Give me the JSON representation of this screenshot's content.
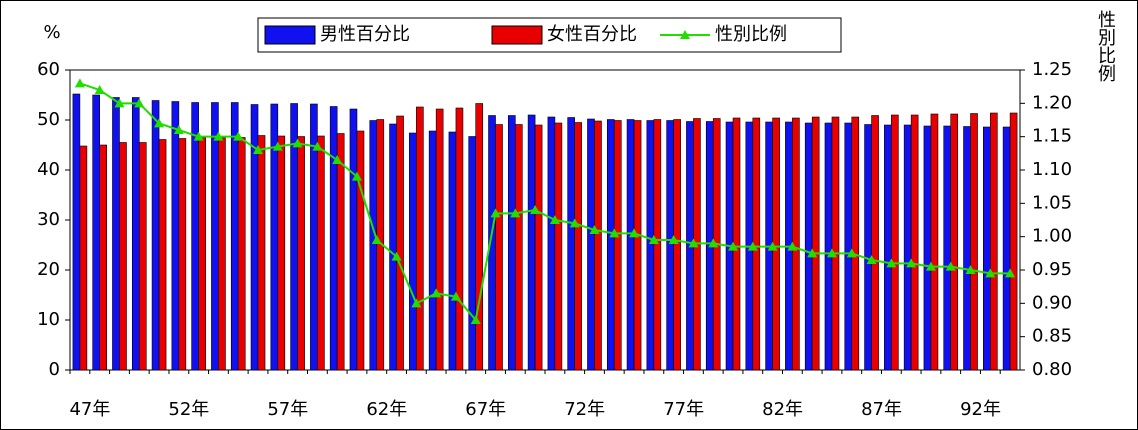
{
  "chart_data": {
    "type": "bar-line",
    "y_label": "%",
    "y2_label": "性別比例",
    "categories": [
      "47年",
      null,
      null,
      null,
      null,
      "52年",
      null,
      null,
      null,
      null,
      "57年",
      null,
      null,
      null,
      null,
      "62年",
      null,
      null,
      null,
      null,
      "67年",
      null,
      null,
      null,
      null,
      "72年",
      null,
      null,
      null,
      null,
      "77年",
      null,
      null,
      null,
      null,
      "82年",
      null,
      null,
      null,
      null,
      "87年",
      null,
      null,
      null,
      null,
      "92年",
      null,
      null
    ],
    "series": [
      {
        "name": "男性百分比",
        "color": "#1010f0",
        "kind": "bar",
        "values": [
          55.2,
          55.0,
          54.5,
          54.5,
          53.9,
          53.7,
          53.5,
          53.5,
          53.5,
          53.1,
          53.2,
          53.3,
          53.2,
          52.7,
          52.2,
          49.9,
          49.2,
          47.4,
          47.8,
          47.6,
          46.7,
          50.9,
          50.9,
          51.0,
          50.6,
          50.5,
          50.2,
          50.1,
          50.1,
          49.9,
          49.9,
          49.7,
          49.7,
          49.6,
          49.6,
          49.6,
          49.6,
          49.4,
          49.4,
          49.4,
          49.1,
          49.0,
          49.0,
          48.8,
          48.8,
          48.7,
          48.6,
          48.6
        ]
      },
      {
        "name": "女性百分比",
        "color": "#e80000",
        "kind": "bar",
        "values": [
          44.8,
          45.0,
          45.5,
          45.5,
          46.1,
          46.3,
          46.5,
          46.5,
          46.5,
          46.9,
          46.8,
          46.7,
          46.8,
          47.3,
          47.8,
          50.1,
          50.8,
          52.6,
          52.2,
          52.4,
          53.3,
          49.1,
          49.1,
          49.0,
          49.4,
          49.5,
          49.8,
          49.9,
          49.9,
          50.1,
          50.1,
          50.3,
          50.3,
          50.4,
          50.4,
          50.4,
          50.4,
          50.6,
          50.6,
          50.6,
          50.9,
          51.0,
          51.0,
          51.2,
          51.2,
          51.3,
          51.4,
          51.4
        ]
      },
      {
        "name": "性別比例",
        "color": "#22dd00",
        "kind": "line",
        "axis": "y2",
        "values": [
          1.23,
          1.22,
          1.2,
          1.2,
          1.17,
          1.16,
          1.15,
          1.15,
          1.15,
          1.13,
          1.135,
          1.14,
          1.135,
          1.115,
          1.09,
          0.995,
          0.97,
          0.9,
          0.915,
          0.91,
          0.875,
          1.035,
          1.035,
          1.04,
          1.025,
          1.02,
          1.01,
          1.005,
          1.005,
          0.995,
          0.995,
          0.99,
          0.99,
          0.985,
          0.985,
          0.985,
          0.985,
          0.975,
          0.975,
          0.975,
          0.965,
          0.96,
          0.96,
          0.955,
          0.955,
          0.95,
          0.945,
          0.945
        ]
      }
    ],
    "ylim": [
      0,
      60
    ],
    "yticks": [
      0,
      10,
      20,
      30,
      40,
      50,
      60
    ],
    "y2lim": [
      0.8,
      1.25
    ],
    "y2ticks": [
      {
        "value": 0.8,
        "label": "0.80"
      },
      0.85,
      {
        "value": 0.9,
        "label": "0.90"
      },
      0.95,
      {
        "value": 1.0,
        "label": "1.00"
      },
      1.05,
      {
        "value": 1.1,
        "label": "1.10"
      },
      1.15,
      {
        "value": 1.2,
        "label": "1.20"
      },
      1.25
    ]
  }
}
